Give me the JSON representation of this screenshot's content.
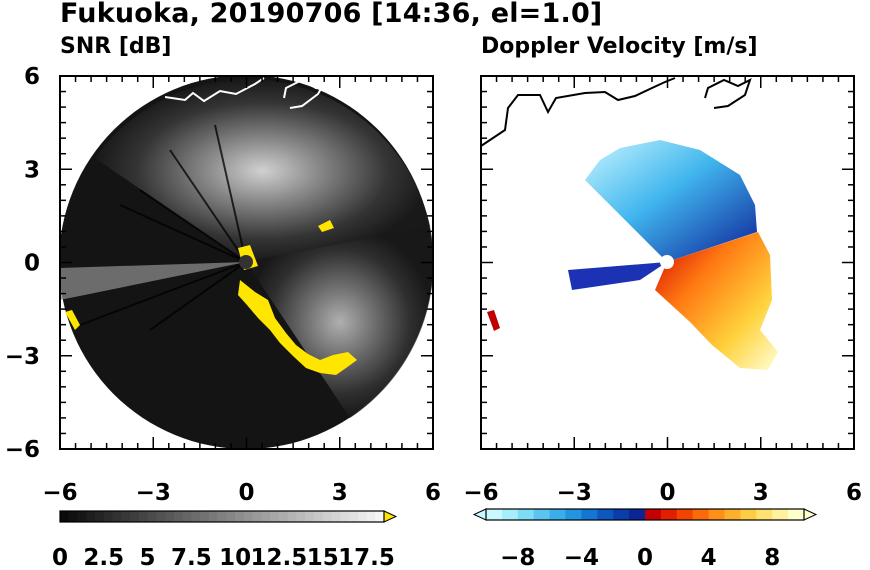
{
  "title": "Fukuoka, 20190706 [14:36, el=1.0]",
  "chart_data": [
    {
      "type": "heatmap",
      "title": "SNR [dB]",
      "xticks": [
        "−6",
        "−3",
        "0",
        "3",
        "6"
      ],
      "yticks": [
        "6",
        "3",
        "0",
        "−3",
        "−6"
      ],
      "xlim": [
        -6,
        6
      ],
      "ylim": [
        -6,
        6
      ],
      "radar_range": 6,
      "colorbar": {
        "kind": "grayscale",
        "min": 0,
        "max": 18.5,
        "extend": "max",
        "over_color": "#ffe600",
        "tick_labels": [
          "0",
          "2.5",
          "5",
          "7.5",
          "10",
          "12.5",
          "15",
          "17.5"
        ]
      },
      "colors": {
        "background": "#111111",
        "high": "#ffffff",
        "over": "#ffe600",
        "coast": "#ffffff"
      }
    },
    {
      "type": "heatmap",
      "title": "Doppler Velocity [m/s]",
      "xticks": [
        "−6",
        "−3",
        "0",
        "3",
        "6"
      ],
      "yticks": [],
      "xlim": [
        -6,
        6
      ],
      "ylim": [
        -6,
        6
      ],
      "colorbar": {
        "kind": "diverging",
        "min": -10,
        "max": 10,
        "extend": "both",
        "tick_labels": [
          "−8",
          "−4",
          "0",
          "4",
          "8"
        ]
      },
      "colors": {
        "negative_far": "#0a1a8c",
        "negative_near": "#bff4ff",
        "positive_near": "#c80000",
        "positive_far": "#ffffd0",
        "coast": "#000000"
      }
    }
  ]
}
